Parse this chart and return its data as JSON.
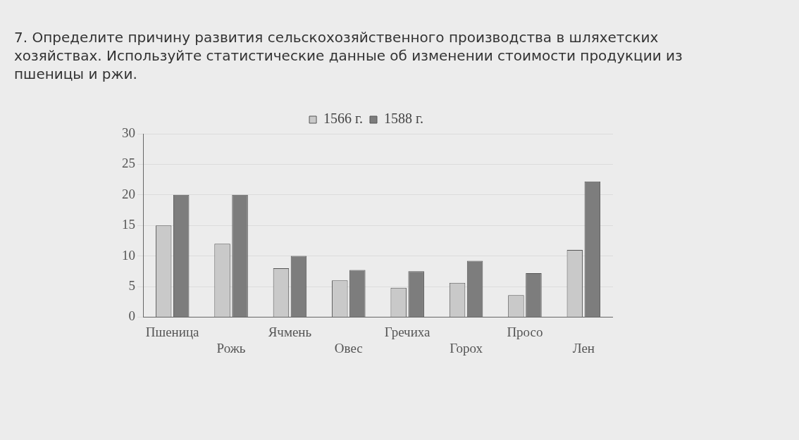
{
  "chart_data": {
    "type": "bar",
    "title": "7. Определите причину развития сельскохозяйственного производства в шляхетских хозяйствах. Используйте статистические данные об изменении стоимости продукции из пшеницы и ржи.",
    "categories": [
      "Пшеница",
      "Рожь",
      "Ячмень",
      "Овес",
      "Гречиха",
      "Горох",
      "Просо",
      "Лен"
    ],
    "series": [
      {
        "name": "1566 г.",
        "color": "#c9c9c9",
        "values": [
          15,
          12,
          8,
          6,
          4.8,
          5.6,
          3.6,
          11
        ]
      },
      {
        "name": "1588 г.",
        "color": "#7d7d7d",
        "values": [
          20,
          20,
          10,
          7.7,
          7.5,
          9.2,
          7.2,
          22.2
        ]
      }
    ],
    "ylim": [
      0,
      30
    ],
    "yticks": [
      0,
      5,
      10,
      15,
      20,
      25,
      30
    ],
    "grid": "y",
    "legend": "top"
  }
}
